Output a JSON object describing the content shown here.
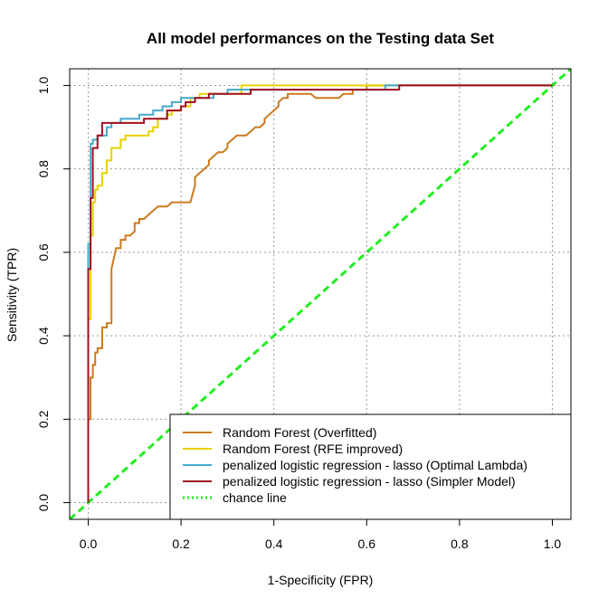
{
  "chart_data": {
    "type": "line",
    "title": "All model performances on the Testing data Set",
    "xlabel": "1-Specificity (FPR)",
    "ylabel": "Sensitivity (TPR)",
    "xlim": [
      -0.04,
      1.04
    ],
    "ylim": [
      -0.04,
      1.04
    ],
    "xticks": [
      0.0,
      0.2,
      0.4,
      0.6,
      0.8,
      1.0
    ],
    "yticks": [
      0.0,
      0.2,
      0.4,
      0.6,
      0.8,
      1.0
    ],
    "xtick_labels": [
      "0.0",
      "0.2",
      "0.4",
      "0.6",
      "0.8",
      "1.0"
    ],
    "ytick_labels": [
      "0.0",
      "0.2",
      "0.4",
      "0.6",
      "0.8",
      "1.0"
    ],
    "grid": true,
    "legend_position": "bottom-right",
    "series": [
      {
        "name": "Random Forest (Overfitted)",
        "color": "#cc7a1f",
        "style": "solid",
        "x": [
          0,
          0,
          0.005,
          0.005,
          0.01,
          0.01,
          0.015,
          0.015,
          0.02,
          0.02,
          0.03,
          0.03,
          0.04,
          0.04,
          0.05,
          0.05,
          0.06,
          0.07,
          0.07,
          0.08,
          0.08,
          0.09,
          0.1,
          0.1,
          0.11,
          0.11,
          0.12,
          0.13,
          0.14,
          0.14,
          0.15,
          0.16,
          0.17,
          0.18,
          0.19,
          0.19,
          0.22,
          0.23,
          0.23,
          0.24,
          0.25,
          0.26,
          0.26,
          0.27,
          0.28,
          0.29,
          0.3,
          0.3,
          0.31,
          0.32,
          0.33,
          0.34,
          0.35,
          0.36,
          0.37,
          0.38,
          0.38,
          0.39,
          0.4,
          0.41,
          0.41,
          0.42,
          0.43,
          0.43,
          0.44,
          0.45,
          0.46,
          0.47,
          0.48,
          0.49,
          0.52,
          0.53,
          0.54,
          0.55,
          0.56,
          0.57,
          0.57,
          0.59,
          0.6,
          0.6,
          0.62,
          0.64,
          1.0
        ],
        "y": [
          0,
          0.2,
          0.2,
          0.3,
          0.3,
          0.33,
          0.33,
          0.36,
          0.36,
          0.37,
          0.37,
          0.42,
          0.42,
          0.43,
          0.43,
          0.56,
          0.61,
          0.61,
          0.63,
          0.63,
          0.64,
          0.64,
          0.65,
          0.67,
          0.67,
          0.68,
          0.68,
          0.69,
          0.7,
          0.7,
          0.71,
          0.71,
          0.71,
          0.72,
          0.72,
          0.72,
          0.72,
          0.76,
          0.78,
          0.79,
          0.8,
          0.81,
          0.82,
          0.83,
          0.84,
          0.84,
          0.85,
          0.86,
          0.87,
          0.88,
          0.88,
          0.88,
          0.89,
          0.9,
          0.9,
          0.91,
          0.92,
          0.93,
          0.94,
          0.95,
          0.96,
          0.97,
          0.97,
          0.98,
          0.98,
          0.98,
          0.98,
          0.98,
          0.98,
          0.97,
          0.97,
          0.97,
          0.97,
          0.98,
          0.98,
          0.98,
          0.99,
          0.99,
          0.99,
          1.0,
          1.0,
          1.0,
          1.0
        ]
      },
      {
        "name": "Random Forest (RFE improved)",
        "color": "#e6d200",
        "style": "solid",
        "x": [
          0,
          0,
          0.005,
          0.005,
          0.01,
          0.01,
          0.015,
          0.015,
          0.02,
          0.02,
          0.03,
          0.03,
          0.04,
          0.04,
          0.05,
          0.05,
          0.07,
          0.07,
          0.08,
          0.08,
          0.09,
          0.09,
          0.13,
          0.13,
          0.14,
          0.14,
          0.15,
          0.15,
          0.17,
          0.17,
          0.18,
          0.18,
          0.2,
          0.2,
          0.22,
          0.22,
          0.24,
          0.24,
          0.33,
          0.33,
          0.55,
          0.55,
          1.0
        ],
        "y": [
          0,
          0.44,
          0.44,
          0.64,
          0.64,
          0.72,
          0.72,
          0.75,
          0.75,
          0.76,
          0.76,
          0.79,
          0.79,
          0.82,
          0.82,
          0.85,
          0.85,
          0.87,
          0.87,
          0.88,
          0.88,
          0.88,
          0.88,
          0.89,
          0.89,
          0.9,
          0.9,
          0.92,
          0.92,
          0.93,
          0.93,
          0.94,
          0.94,
          0.95,
          0.95,
          0.97,
          0.97,
          0.98,
          0.98,
          1.0,
          1.0,
          1.0,
          1.0
        ]
      },
      {
        "name": "penalized logistic regression - lasso (Optimal Lambda)",
        "color": "#45aacc",
        "style": "solid",
        "x": [
          0,
          0,
          0.005,
          0.005,
          0.01,
          0.01,
          0.02,
          0.02,
          0.04,
          0.04,
          0.05,
          0.05,
          0.07,
          0.07,
          0.11,
          0.11,
          0.14,
          0.14,
          0.16,
          0.16,
          0.18,
          0.18,
          0.2,
          0.2,
          0.27,
          0.27,
          0.3,
          0.3,
          0.64,
          0.64,
          1.0
        ],
        "y": [
          0,
          0.62,
          0.62,
          0.86,
          0.86,
          0.87,
          0.87,
          0.88,
          0.88,
          0.9,
          0.9,
          0.91,
          0.91,
          0.92,
          0.92,
          0.93,
          0.93,
          0.94,
          0.94,
          0.95,
          0.95,
          0.96,
          0.96,
          0.97,
          0.97,
          0.98,
          0.98,
          0.99,
          0.99,
          1.0,
          1.0
        ]
      },
      {
        "name": "penalized logistic regression - lasso (Simpler Model)",
        "color": "#a01020",
        "style": "solid",
        "x": [
          0,
          0,
          0.005,
          0.005,
          0.01,
          0.01,
          0.02,
          0.02,
          0.03,
          0.03,
          0.12,
          0.12,
          0.17,
          0.17,
          0.2,
          0.2,
          0.21,
          0.21,
          0.23,
          0.23,
          0.26,
          0.26,
          0.31,
          0.31,
          0.35,
          0.35,
          0.62,
          0.62,
          0.67,
          0.67,
          1.0
        ],
        "y": [
          0,
          0.56,
          0.56,
          0.73,
          0.73,
          0.85,
          0.85,
          0.88,
          0.88,
          0.91,
          0.91,
          0.92,
          0.92,
          0.94,
          0.94,
          0.95,
          0.95,
          0.96,
          0.96,
          0.97,
          0.97,
          0.98,
          0.98,
          0.98,
          0.98,
          0.99,
          0.99,
          0.99,
          0.99,
          1.0,
          1.0
        ]
      },
      {
        "name": "chance line",
        "color": "#22ee22",
        "style": "dashed",
        "x": [
          -0.04,
          1.04
        ],
        "y": [
          -0.04,
          1.04
        ]
      }
    ]
  }
}
